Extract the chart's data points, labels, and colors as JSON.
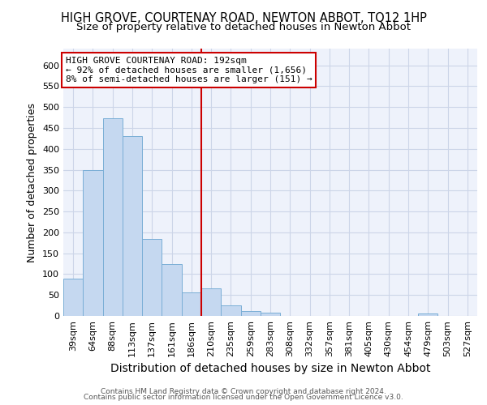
{
  "title": "HIGH GROVE, COURTENAY ROAD, NEWTON ABBOT, TQ12 1HP",
  "subtitle": "Size of property relative to detached houses in Newton Abbot",
  "xlabel": "Distribution of detached houses by size in Newton Abbot",
  "ylabel": "Number of detached properties",
  "categories": [
    "39sqm",
    "64sqm",
    "88sqm",
    "113sqm",
    "137sqm",
    "161sqm",
    "186sqm",
    "210sqm",
    "235sqm",
    "259sqm",
    "283sqm",
    "308sqm",
    "332sqm",
    "357sqm",
    "381sqm",
    "405sqm",
    "430sqm",
    "454sqm",
    "479sqm",
    "503sqm",
    "527sqm"
  ],
  "values": [
    90,
    350,
    473,
    430,
    185,
    124,
    57,
    65,
    25,
    12,
    8,
    0,
    0,
    0,
    0,
    0,
    0,
    0,
    5,
    0,
    0
  ],
  "bar_color": "#c5d8f0",
  "bar_edge_color": "#7aaed6",
  "vline_x_idx": 6,
  "vline_label_title": "HIGH GROVE COURTENAY ROAD: 192sqm",
  "vline_label_line1": "← 92% of detached houses are smaller (1,656)",
  "vline_label_line2": "8% of semi-detached houses are larger (151) →",
  "annotation_box_color": "#cc0000",
  "vline_color": "#cc0000",
  "ylim": [
    0,
    640
  ],
  "yticks": [
    0,
    50,
    100,
    150,
    200,
    250,
    300,
    350,
    400,
    450,
    500,
    550,
    600
  ],
  "background_color": "#eef2fb",
  "grid_color": "#ccd5e8",
  "footer_line1": "Contains HM Land Registry data © Crown copyright and database right 2024.",
  "footer_line2": "Contains public sector information licensed under the Open Government Licence v3.0.",
  "title_fontsize": 10.5,
  "subtitle_fontsize": 9.5,
  "xlabel_fontsize": 10,
  "ylabel_fontsize": 9,
  "tick_fontsize": 8,
  "annotation_fontsize": 8
}
